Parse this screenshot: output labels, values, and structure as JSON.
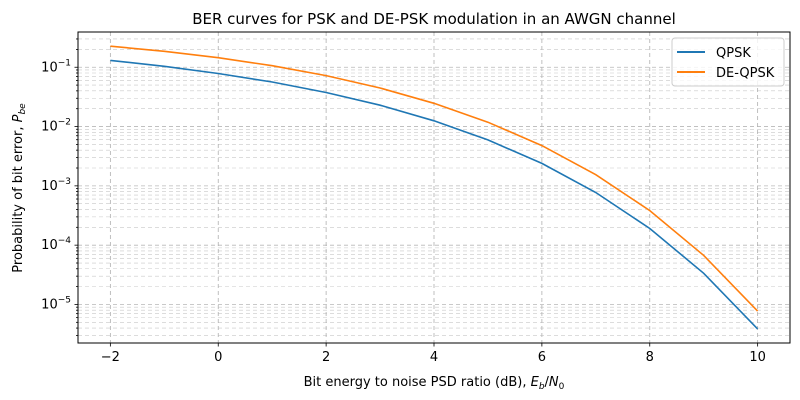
{
  "chart_data": {
    "type": "line",
    "title": "BER curves for PSK and DE-PSK modulation in an AWGN channel",
    "xlabel": "Bit energy to noise PSD ratio (dB), E_b/N_0",
    "ylabel": "Probability of bit error, P_be",
    "xlim": [
      -2.6,
      10.6
    ],
    "ylim": [
      2.24e-06,
      0.393
    ],
    "yscale": "log",
    "grid": true,
    "grid_style": "dashed, major and minor",
    "legend_position": "top-right",
    "x_ticks": [
      -2,
      0,
      2,
      4,
      6,
      8,
      10
    ],
    "y_ticks": [
      -1,
      -2,
      -3,
      -4,
      -5
    ],
    "x": [
      -2,
      -1,
      0,
      1,
      2,
      3,
      4,
      5,
      6,
      7,
      8,
      9,
      10
    ],
    "series": [
      {
        "name": "QPSK",
        "color": "#1f77b4",
        "values": [
          0.1304,
          0.1037,
          0.0786,
          0.0563,
          0.0375,
          0.0229,
          0.0125,
          0.00595,
          0.002388,
          0.000772,
          0.000191,
          3.36e-05,
          3.87e-06
        ]
      },
      {
        "name": "DE-QPSK",
        "color": "#ff7f0e",
        "values": [
          0.2268,
          0.1859,
          0.1448,
          0.1063,
          0.0722,
          0.0447,
          0.0247,
          0.01183,
          0.004765,
          0.001543,
          0.000382,
          6.72e-05,
          7.74e-06
        ]
      }
    ]
  }
}
